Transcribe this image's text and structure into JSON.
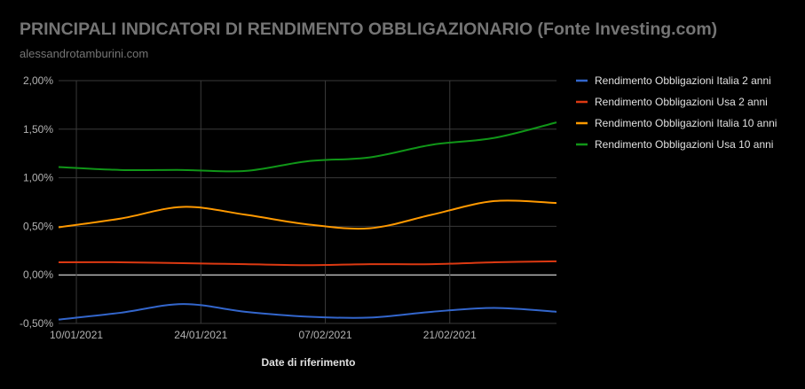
{
  "header": {
    "title": "PRINCIPALI INDICATORI DI RENDIMENTO OBBLIGAZIONARIO (Fonte Investing.com)",
    "subtitle": "alessandrotamburini.com"
  },
  "chart_data": {
    "type": "line",
    "title": "PRINCIPALI INDICATORI DI RENDIMENTO OBBLIGAZIONARIO (Fonte Investing.com)",
    "xlabel": "Date di riferimento",
    "ylabel": "",
    "x_ticks": [
      "10/01/2021",
      "24/01/2021",
      "07/02/2021",
      "21/02/2021"
    ],
    "x": [
      "08/01/2021",
      "15/01/2021",
      "22/01/2021",
      "29/01/2021",
      "05/02/2021",
      "12/02/2021",
      "19/02/2021",
      "26/02/2021",
      "05/03/2021"
    ],
    "y_ticks": [
      "2,00%",
      "1,50%",
      "1,00%",
      "0,50%",
      "0,00%",
      "-0,50%"
    ],
    "ylim": [
      -0.5,
      2.0
    ],
    "grid": true,
    "legend_position": "right",
    "series": [
      {
        "name": "Rendimento Obbligazioni Italia 2 anni",
        "color": "#3366cc",
        "values": [
          -0.46,
          -0.39,
          -0.3,
          -0.38,
          -0.43,
          -0.44,
          -0.38,
          -0.34,
          -0.38
        ]
      },
      {
        "name": "Rendimento Obbligazioni Usa 2 anni",
        "color": "#dc3912",
        "values": [
          0.13,
          0.13,
          0.12,
          0.11,
          0.1,
          0.11,
          0.11,
          0.13,
          0.14
        ]
      },
      {
        "name": "Rendimento Obbligazioni Italia 10 anni",
        "color": "#ff9900",
        "values": [
          0.49,
          0.58,
          0.7,
          0.62,
          0.52,
          0.48,
          0.62,
          0.76,
          0.74
        ]
      },
      {
        "name": "Rendimento Obbligazioni Usa 10 anni",
        "color": "#109618",
        "values": [
          1.11,
          1.08,
          1.08,
          1.07,
          1.17,
          1.21,
          1.34,
          1.41,
          1.57
        ]
      }
    ]
  }
}
